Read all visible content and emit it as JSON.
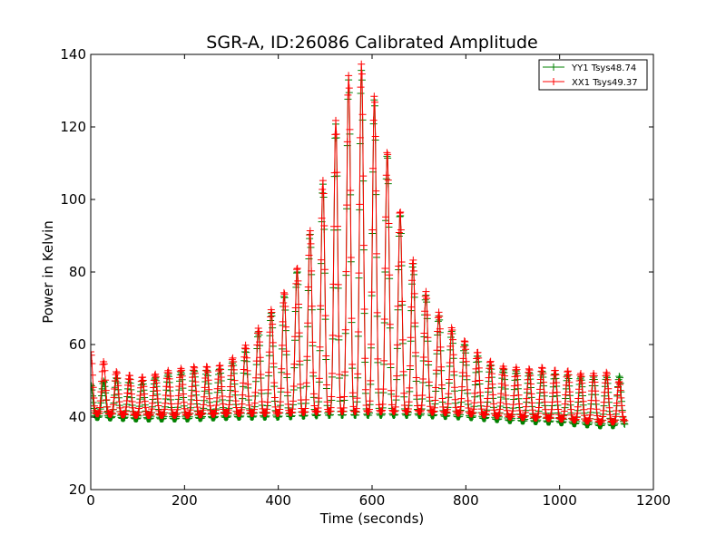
{
  "chart_data": {
    "type": "line",
    "title": "SGR-A, ID:26086 Calibrated Amplitude",
    "xlabel": "Time (seconds)",
    "ylabel": "Power in Kelvin",
    "xlim": [
      0,
      1200
    ],
    "ylim": [
      20,
      140
    ],
    "xticks": [
      "0",
      "200",
      "400",
      "600",
      "800",
      "1000",
      "1200"
    ],
    "yticks": [
      "20",
      "40",
      "60",
      "80",
      "100",
      "120",
      "140"
    ],
    "legend_position": "top-right",
    "grid": false,
    "marker": "plus",
    "series": [
      {
        "name": "YY1 Tsys48.74",
        "color": "#008000",
        "x_start": 0,
        "x_end": 1140,
        "period": 27.5,
        "peak_phase_offset": 0,
        "minima": [
          [
            0,
            40
          ],
          [
            100,
            39.5
          ],
          [
            200,
            39.5
          ],
          [
            300,
            40
          ],
          [
            400,
            40
          ],
          [
            500,
            40.5
          ],
          [
            600,
            40.5
          ],
          [
            700,
            40.5
          ],
          [
            800,
            40
          ],
          [
            900,
            39
          ],
          [
            1000,
            38.5
          ],
          [
            1100,
            37.5
          ],
          [
            1140,
            38
          ]
        ],
        "peaks": [
          [
            0,
            49
          ],
          [
            60,
            51
          ],
          [
            115,
            50
          ],
          [
            170,
            52
          ],
          [
            225,
            53
          ],
          [
            270,
            53
          ],
          [
            300,
            55
          ],
          [
            325,
            58
          ],
          [
            350,
            62
          ],
          [
            375,
            67
          ],
          [
            405,
            72
          ],
          [
            430,
            77
          ],
          [
            460,
            87
          ],
          [
            490,
            101
          ],
          [
            515,
            117
          ],
          [
            545,
            132
          ],
          [
            570,
            137
          ],
          [
            595,
            133
          ],
          [
            620,
            120
          ],
          [
            650,
            102
          ],
          [
            675,
            87
          ],
          [
            705,
            76
          ],
          [
            730,
            70
          ],
          [
            760,
            65
          ],
          [
            790,
            61
          ],
          [
            815,
            58
          ],
          [
            845,
            55
          ],
          [
            870,
            53
          ],
          [
            900,
            53
          ],
          [
            925,
            52
          ],
          [
            955,
            53
          ],
          [
            985,
            52
          ],
          [
            1010,
            52
          ],
          [
            1040,
            51
          ],
          [
            1065,
            51
          ],
          [
            1090,
            51
          ],
          [
            1120,
            52
          ],
          [
            1140,
            50
          ]
        ]
      },
      {
        "name": "XX1 Tsys49.37",
        "color": "#ff0000",
        "x_start": 0,
        "x_end": 1140,
        "period": 27.5,
        "peak_phase_offset": 0,
        "minima": [
          [
            0,
            41
          ],
          [
            100,
            40.5
          ],
          [
            200,
            40.5
          ],
          [
            300,
            41
          ],
          [
            400,
            41
          ],
          [
            500,
            41.5
          ],
          [
            600,
            41.5
          ],
          [
            700,
            41.5
          ],
          [
            800,
            41
          ],
          [
            900,
            40
          ],
          [
            1000,
            39.5
          ],
          [
            1100,
            38.5
          ],
          [
            1140,
            39
          ]
        ],
        "peaks": [
          [
            0,
            58
          ],
          [
            60,
            52
          ],
          [
            115,
            51
          ],
          [
            170,
            53
          ],
          [
            225,
            54
          ],
          [
            270,
            54
          ],
          [
            300,
            56
          ],
          [
            325,
            59
          ],
          [
            350,
            63
          ],
          [
            375,
            68
          ],
          [
            405,
            73
          ],
          [
            430,
            78
          ],
          [
            460,
            88
          ],
          [
            490,
            102
          ],
          [
            515,
            118
          ],
          [
            545,
            133
          ],
          [
            570,
            139
          ],
          [
            595,
            134
          ],
          [
            620,
            121
          ],
          [
            650,
            103
          ],
          [
            675,
            88
          ],
          [
            705,
            77
          ],
          [
            730,
            71
          ],
          [
            760,
            66
          ],
          [
            790,
            62
          ],
          [
            815,
            59
          ],
          [
            845,
            56
          ],
          [
            870,
            54
          ],
          [
            900,
            54
          ],
          [
            925,
            53
          ],
          [
            955,
            54
          ],
          [
            985,
            53
          ],
          [
            1010,
            53
          ],
          [
            1040,
            52
          ],
          [
            1065,
            52
          ],
          [
            1090,
            52
          ],
          [
            1120,
            53
          ],
          [
            1140,
            44
          ]
        ]
      }
    ]
  }
}
